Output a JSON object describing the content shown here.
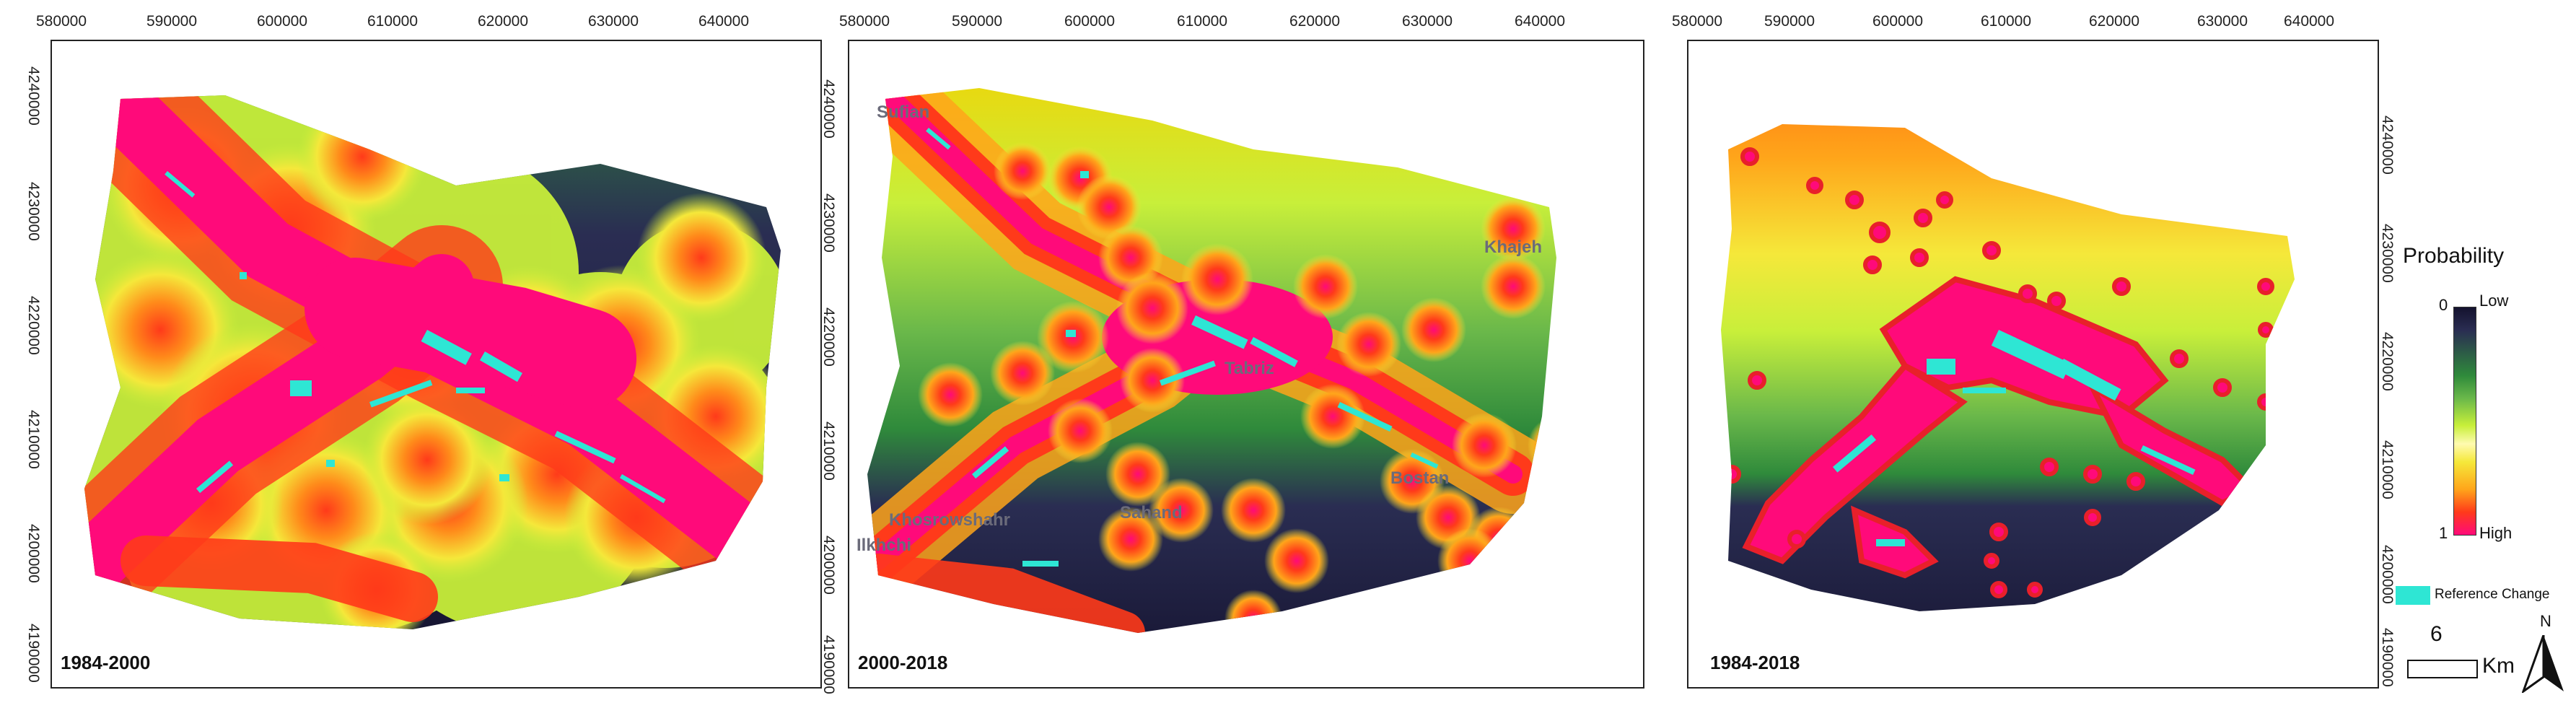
{
  "axis": {
    "x_ticks": [
      "580000",
      "590000",
      "600000",
      "610000",
      "620000",
      "630000",
      "640000"
    ],
    "y_ticks": [
      "4240000",
      "4230000",
      "4220000",
      "4210000",
      "4200000",
      "4190000"
    ]
  },
  "panels": [
    {
      "period": "1984-2000",
      "places": []
    },
    {
      "period": "2000-2018",
      "places": [
        "Sufian",
        "Khajeh",
        "Tabriz",
        "Bostan",
        "Khosrowshahr",
        "Sahand",
        "Ilkhchi"
      ]
    },
    {
      "period": "1984-2018",
      "places": []
    }
  ],
  "legend": {
    "title": "Probability",
    "top_value": "0",
    "top_label": "Low",
    "bottom_value": "1",
    "bottom_label": "High",
    "reference_label": "Reference Change",
    "reference_color": "#2ee6d4",
    "scale_value": "6",
    "scale_unit": "Km",
    "north_label": "N"
  },
  "colors": {
    "high": "#ff0a7a",
    "mid_red": "#ff3a1a",
    "orange": "#ffa51a",
    "yellow": "#f5f542",
    "green": "#2f8a3b",
    "navy": "#2a2d52",
    "low": "#14122e"
  }
}
